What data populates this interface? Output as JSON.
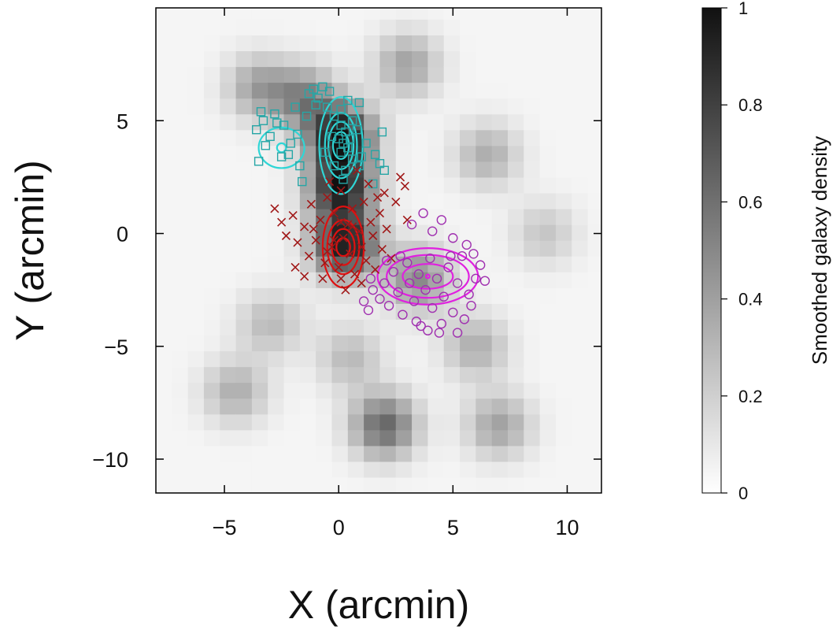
{
  "chart_data": {
    "type": "scatter",
    "xlabel": "X (arcmin)",
    "ylabel": "Y (arcmin)",
    "xlim": [
      -8,
      11.5
    ],
    "ylim": [
      -11.5,
      10
    ],
    "xticks": [
      -5,
      0,
      5,
      10
    ],
    "yticks": [
      -10,
      -5,
      0,
      5
    ],
    "xtick_labels": [
      "−5",
      "0",
      "5",
      "10"
    ],
    "ytick_labels": [
      "−10",
      "−5",
      "0",
      "5"
    ],
    "grid": false,
    "background": {
      "type": "heatmap",
      "colorbar_label": "Smoothed galaxy density",
      "colorbar_range": [
        0,
        1
      ],
      "colorbar_ticks": [
        0,
        0.2,
        0.4,
        0.6,
        0.8,
        1
      ],
      "colorbar_tick_labels": [
        "0",
        "0.2",
        "0.4",
        "0.6",
        "0.8",
        "1"
      ],
      "colormap": [
        "#ffffff",
        "#111111"
      ],
      "peaks": [
        {
          "x": 0.1,
          "y": 4.3,
          "value": 0.95
        },
        {
          "x": 0.1,
          "y": 2.0,
          "value": 0.85
        },
        {
          "x": 0.3,
          "y": -0.5,
          "value": 0.9
        },
        {
          "x": -1.5,
          "y": 6.0,
          "value": 0.45
        },
        {
          "x": -3.5,
          "y": 6.5,
          "value": 0.35
        },
        {
          "x": 3.5,
          "y": -2.0,
          "value": 0.45
        },
        {
          "x": 2.0,
          "y": -8.5,
          "value": 0.6
        },
        {
          "x": 7.0,
          "y": -8.5,
          "value": 0.35
        },
        {
          "x": 3.0,
          "y": 7.5,
          "value": 0.35
        },
        {
          "x": 6.5,
          "y": 3.5,
          "value": 0.3
        },
        {
          "x": -4.5,
          "y": -7.0,
          "value": 0.3
        },
        {
          "x": 6.0,
          "y": -5.0,
          "value": 0.3
        },
        {
          "x": 0.5,
          "y": -5.5,
          "value": 0.25
        },
        {
          "x": -3.0,
          "y": -4.0,
          "value": 0.25
        },
        {
          "x": 9.0,
          "y": 0.0,
          "value": 0.2
        }
      ]
    },
    "series": [
      {
        "marker": "square",
        "color": "#26a6a6",
        "points": [
          [
            -3.6,
            4.6
          ],
          [
            -3.3,
            5.0
          ],
          [
            -3.0,
            4.3
          ],
          [
            -3.2,
            3.9
          ],
          [
            -2.8,
            5.3
          ],
          [
            -2.4,
            4.8
          ],
          [
            -2.5,
            3.4
          ],
          [
            -3.5,
            3.2
          ],
          [
            -2.1,
            4.0
          ],
          [
            -2.2,
            3.5
          ],
          [
            -1.8,
            4.4
          ],
          [
            -1.7,
            3.0
          ],
          [
            -1.9,
            5.6
          ],
          [
            -1.4,
            5.2
          ],
          [
            -1.6,
            2.3
          ],
          [
            -1.3,
            6.2
          ],
          [
            -0.9,
            6.0
          ],
          [
            -0.7,
            6.5
          ],
          [
            -1.0,
            5.7
          ],
          [
            -0.4,
            6.3
          ],
          [
            -0.5,
            5.6
          ],
          [
            -0.2,
            5.2
          ],
          [
            0.1,
            5.5
          ],
          [
            0.4,
            5.9
          ],
          [
            0.6,
            5.0
          ],
          [
            0.1,
            4.8
          ],
          [
            0.3,
            4.5
          ],
          [
            0.0,
            4.2
          ],
          [
            0.2,
            4.0
          ],
          [
            -0.3,
            4.3
          ],
          [
            0.5,
            4.2
          ],
          [
            0.4,
            3.8
          ],
          [
            0.1,
            3.6
          ],
          [
            -0.2,
            3.0
          ],
          [
            0.3,
            2.8
          ],
          [
            0.6,
            3.3
          ],
          [
            0.9,
            3.0
          ],
          [
            0.8,
            4.6
          ],
          [
            1.2,
            4.0
          ],
          [
            1.0,
            3.4
          ],
          [
            1.5,
            2.2
          ],
          [
            1.8,
            3.1
          ],
          [
            2.0,
            2.8
          ],
          [
            1.6,
            3.5
          ],
          [
            1.9,
            4.5
          ],
          [
            0.2,
            2.4
          ],
          [
            -0.6,
            3.6
          ],
          [
            -1.1,
            6.4
          ],
          [
            0.9,
            5.8
          ],
          [
            -2.7,
            4.9
          ],
          [
            -3.4,
            5.4
          ]
        ]
      },
      {
        "marker": "x",
        "color": "#a01818",
        "points": [
          [
            -2.8,
            1.1
          ],
          [
            -2.5,
            0.5
          ],
          [
            -2.3,
            -0.1
          ],
          [
            -2.0,
            0.8
          ],
          [
            -1.8,
            -0.4
          ],
          [
            -1.5,
            0.3
          ],
          [
            -1.3,
            -1.0
          ],
          [
            -1.2,
            1.3
          ],
          [
            -1.0,
            -0.3
          ],
          [
            -0.8,
            0.6
          ],
          [
            -0.6,
            -1.3
          ],
          [
            -0.5,
            1.6
          ],
          [
            -0.3,
            -0.6
          ],
          [
            -0.2,
            0.9
          ],
          [
            0.0,
            -1.5
          ],
          [
            0.1,
            1.9
          ],
          [
            0.2,
            -0.2
          ],
          [
            0.4,
            0.4
          ],
          [
            0.5,
            -0.9
          ],
          [
            0.6,
            1.1
          ],
          [
            0.7,
            -1.8
          ],
          [
            0.9,
            0.1
          ],
          [
            1.0,
            -0.6
          ],
          [
            1.1,
            1.4
          ],
          [
            1.2,
            -1.2
          ],
          [
            1.3,
            2.2
          ],
          [
            1.4,
            0.5
          ],
          [
            1.5,
            -0.1
          ],
          [
            1.6,
            -1.6
          ],
          [
            1.8,
            0.9
          ],
          [
            1.9,
            -0.7
          ],
          [
            2.0,
            1.8
          ],
          [
            2.1,
            0.2
          ],
          [
            2.3,
            -1.1
          ],
          [
            2.5,
            1.4
          ],
          [
            2.7,
            2.5
          ],
          [
            2.9,
            2.1
          ],
          [
            3.0,
            0.6
          ],
          [
            0.3,
            -2.5
          ],
          [
            0.1,
            -2.0
          ],
          [
            -0.7,
            -2.0
          ],
          [
            -1.5,
            -1.9
          ],
          [
            -0.4,
            2.3
          ],
          [
            0.8,
            2.8
          ],
          [
            1.7,
            1.6
          ],
          [
            -1.1,
            0.2
          ],
          [
            -0.2,
            -0.3
          ],
          [
            0.6,
            0.3
          ],
          [
            0.1,
            0.5
          ],
          [
            -0.5,
            -0.8
          ],
          [
            1.0,
            -2.2
          ],
          [
            -1.9,
            -1.5
          ]
        ]
      },
      {
        "marker": "circle",
        "color": "#a030b0",
        "points": [
          [
            1.1,
            -3.0
          ],
          [
            1.3,
            -3.4
          ],
          [
            1.5,
            -2.5
          ],
          [
            1.8,
            -2.9
          ],
          [
            2.0,
            -2.2
          ],
          [
            2.2,
            -3.2
          ],
          [
            2.4,
            -1.7
          ],
          [
            2.6,
            -2.6
          ],
          [
            2.8,
            -3.6
          ],
          [
            3.0,
            -1.3
          ],
          [
            3.1,
            -2.2
          ],
          [
            3.3,
            -3.0
          ],
          [
            3.5,
            -1.8
          ],
          [
            3.6,
            -4.1
          ],
          [
            3.8,
            -2.5
          ],
          [
            4.0,
            -1.1
          ],
          [
            4.1,
            -3.3
          ],
          [
            4.3,
            -2.0
          ],
          [
            4.5,
            -4.0
          ],
          [
            4.6,
            -2.8
          ],
          [
            4.8,
            -1.5
          ],
          [
            5.0,
            -3.5
          ],
          [
            5.2,
            -2.2
          ],
          [
            5.4,
            -1.0
          ],
          [
            5.5,
            -3.8
          ],
          [
            5.7,
            -2.7
          ],
          [
            5.9,
            -0.9
          ],
          [
            6.0,
            -2.0
          ],
          [
            6.2,
            -1.4
          ],
          [
            6.4,
            -2.1
          ],
          [
            3.2,
            0.4
          ],
          [
            3.7,
            0.9
          ],
          [
            4.1,
            0.1
          ],
          [
            4.5,
            0.6
          ],
          [
            5.0,
            -0.2
          ],
          [
            5.6,
            -0.5
          ],
          [
            2.7,
            -1.0
          ],
          [
            3.4,
            -3.9
          ],
          [
            3.9,
            -4.3
          ],
          [
            4.4,
            -4.4
          ],
          [
            5.2,
            -4.4
          ],
          [
            5.8,
            -3.2
          ],
          [
            4.9,
            -1.0
          ],
          [
            2.1,
            -1.2
          ],
          [
            1.4,
            -2.0
          ]
        ]
      }
    ],
    "contours": [
      {
        "color": "#2fd6d6",
        "center": [
          -2.5,
          3.8
        ],
        "rings": [
          [
            0.2,
            0.2
          ],
          [
            1.0,
            0.9
          ]
        ]
      },
      {
        "color": "#2fd6d6",
        "center": [
          0.1,
          3.9
        ],
        "rings": [
          [
            0.35,
            0.6
          ],
          [
            0.55,
            1.05
          ],
          [
            0.7,
            1.45
          ],
          [
            0.95,
            2.15
          ]
        ]
      },
      {
        "color": "#e01010",
        "center": [
          0.2,
          -0.6
        ],
        "rings": [
          [
            0.3,
            0.4
          ],
          [
            0.5,
            0.8
          ],
          [
            0.7,
            1.2
          ],
          [
            0.9,
            1.8
          ]
        ]
      },
      {
        "color": "#e020e0",
        "center": [
          3.9,
          -1.9
        ],
        "rings": [
          [
            0.08,
            0.08
          ],
          [
            1.1,
            0.55
          ],
          [
            1.8,
            0.95
          ],
          [
            2.2,
            1.25
          ]
        ]
      }
    ]
  }
}
